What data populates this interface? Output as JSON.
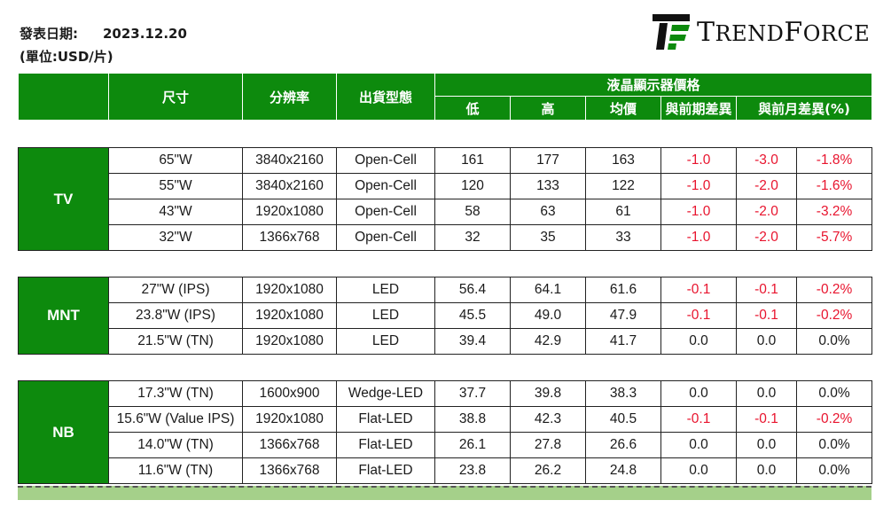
{
  "header": {
    "date_label": "發表日期:",
    "date_value": "2023.12.20",
    "unit": "(單位:USD/片)"
  },
  "logo": {
    "text_first": "T",
    "text_rest1": "REND",
    "text_f": "F",
    "text_rest2": "ORCE",
    "brand_color": "#0d8a0d"
  },
  "columns": {
    "size": "尺寸",
    "resolution": "分辨率",
    "shipment": "出貨型態",
    "price_group": "液晶顯示器價格",
    "low": "低",
    "high": "高",
    "avg": "均價",
    "diff_prev": "與前期差異",
    "diff_month": "與前月差異(%)"
  },
  "groups": [
    {
      "name": "TV",
      "rows": [
        {
          "size": "65\"W",
          "res": "3840x2160",
          "type": "Open-Cell",
          "low": "161",
          "high": "177",
          "avg": "163",
          "dp": "-1.0",
          "dm": "-3.0",
          "dmp": "-1.8%"
        },
        {
          "size": "55\"W",
          "res": "3840x2160",
          "type": "Open-Cell",
          "low": "120",
          "high": "133",
          "avg": "122",
          "dp": "-1.0",
          "dm": "-2.0",
          "dmp": "-1.6%"
        },
        {
          "size": "43\"W",
          "res": "1920x1080",
          "type": "Open-Cell",
          "low": "58",
          "high": "63",
          "avg": "61",
          "dp": "-1.0",
          "dm": "-2.0",
          "dmp": "-3.2%"
        },
        {
          "size": "32\"W",
          "res": "1366x768",
          "type": "Open-Cell",
          "low": "32",
          "high": "35",
          "avg": "33",
          "dp": "-1.0",
          "dm": "-2.0",
          "dmp": "-5.7%"
        }
      ]
    },
    {
      "name": "MNT",
      "rows": [
        {
          "size": "27\"W (IPS)",
          "res": "1920x1080",
          "type": "LED",
          "low": "56.4",
          "high": "64.1",
          "avg": "61.6",
          "dp": "-0.1",
          "dm": "-0.1",
          "dmp": "-0.2%"
        },
        {
          "size": "23.8\"W (IPS)",
          "res": "1920x1080",
          "type": "LED",
          "low": "45.5",
          "high": "49.0",
          "avg": "47.9",
          "dp": "-0.1",
          "dm": "-0.1",
          "dmp": "-0.2%"
        },
        {
          "size": "21.5\"W (TN)",
          "res": "1920x1080",
          "type": "LED",
          "low": "39.4",
          "high": "42.9",
          "avg": "41.7",
          "dp": "0.0",
          "dm": "0.0",
          "dmp": "0.0%"
        }
      ]
    },
    {
      "name": "NB",
      "rows": [
        {
          "size": "17.3\"W (TN)",
          "res": "1600x900",
          "type": "Wedge-LED",
          "low": "37.7",
          "high": "39.8",
          "avg": "38.3",
          "dp": "0.0",
          "dm": "0.0",
          "dmp": "0.0%"
        },
        {
          "size": "15.6\"W (Value IPS)",
          "res": "1920x1080",
          "type": "Flat-LED",
          "low": "38.8",
          "high": "42.3",
          "avg": "40.5",
          "dp": "-0.1",
          "dm": "-0.1",
          "dmp": "-0.2%"
        },
        {
          "size": "14.0\"W (TN)",
          "res": "1366x768",
          "type": "Flat-LED",
          "low": "26.1",
          "high": "27.8",
          "avg": "26.6",
          "dp": "0.0",
          "dm": "0.0",
          "dmp": "0.0%"
        },
        {
          "size": "11.6\"W (TN)",
          "res": "1366x768",
          "type": "Flat-LED",
          "low": "23.8",
          "high": "26.2",
          "avg": "24.8",
          "dp": "0.0",
          "dm": "0.0",
          "dmp": "0.0%"
        }
      ]
    }
  ]
}
